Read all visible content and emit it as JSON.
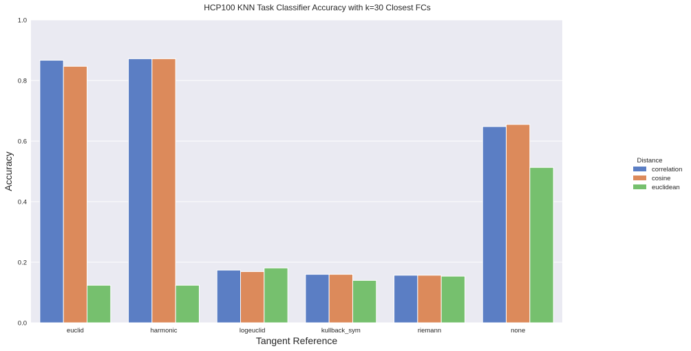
{
  "chart_data": {
    "type": "bar",
    "title": "HCP100 KNN Task Classifier Accuracy with k=30 Closest FCs",
    "xlabel": "Tangent Reference",
    "ylabel": "Accuracy",
    "ylim": [
      0,
      1.0
    ],
    "yticks": [
      "0.0",
      "0.2",
      "0.4",
      "0.6",
      "0.8",
      "1.0"
    ],
    "categories": [
      "euclid",
      "harmonic",
      "logeuclid",
      "kullback_sym",
      "riemann",
      "none"
    ],
    "series": [
      {
        "name": "correlation",
        "color": "#5b7ec4",
        "values": [
          0.867,
          0.872,
          0.174,
          0.16,
          0.157,
          0.648
        ]
      },
      {
        "name": "cosine",
        "color": "#dc8a5b",
        "values": [
          0.847,
          0.872,
          0.169,
          0.16,
          0.157,
          0.655
        ]
      },
      {
        "name": "euclidean",
        "color": "#76c06e",
        "values": [
          0.124,
          0.124,
          0.181,
          0.14,
          0.154,
          0.513
        ]
      }
    ],
    "legend": {
      "title": "Distance",
      "placement": "right"
    },
    "grid": true,
    "background": "#eaeaf2"
  }
}
